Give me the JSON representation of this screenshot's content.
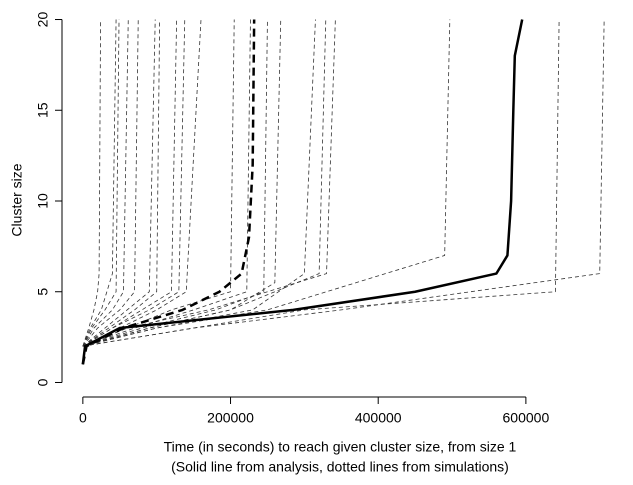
{
  "chart_data": {
    "type": "line",
    "xlabel": "Time (in seconds) to reach given cluster size, from size 1",
    "caption": "(Solid line from analysis, dotted lines from simulations)",
    "ylabel": "Cluster size",
    "xlim": [
      -28240,
      734240
    ],
    "xticks": [
      0,
      200000,
      400000,
      600000
    ],
    "ylim": [
      -0.8,
      20.8
    ],
    "yticks": [
      0,
      5,
      10,
      15,
      20
    ],
    "series": [
      {
        "color": "#333333",
        "width": 0.8,
        "dash": "4,3",
        "x": [
          0,
          8000,
          15000,
          20000,
          22000,
          24000
        ],
        "values": [
          2,
          3,
          4,
          5,
          6,
          20
        ]
      },
      {
        "color": "#333333",
        "width": 0.8,
        "dash": "4,3",
        "x": [
          0,
          10000,
          25000,
          40000,
          45000
        ],
        "values": [
          2,
          3,
          4,
          6,
          20
        ]
      },
      {
        "color": "#333333",
        "width": 0.8,
        "dash": "4,3",
        "x": [
          0,
          12000,
          30000,
          45000,
          49000
        ],
        "values": [
          2,
          3,
          4,
          5,
          20
        ]
      },
      {
        "color": "#333333",
        "width": 0.8,
        "dash": "4,3",
        "x": [
          0,
          15000,
          40000,
          55000,
          61500
        ],
        "values": [
          2,
          3,
          4,
          5,
          20
        ]
      },
      {
        "color": "#333333",
        "width": 0.8,
        "dash": "4,3",
        "x": [
          0,
          20000,
          50000,
          70000,
          75000
        ],
        "values": [
          2,
          3,
          4,
          5,
          20
        ]
      },
      {
        "color": "#333333",
        "width": 0.8,
        "dash": "4,3",
        "x": [
          0,
          30000,
          60000,
          90000,
          98000
        ],
        "values": [
          2,
          3,
          4,
          5,
          20
        ]
      },
      {
        "color": "#333333",
        "width": 0.8,
        "dash": "4,3",
        "x": [
          0,
          35000,
          70000,
          100000,
          104000
        ],
        "values": [
          2,
          3,
          4,
          5,
          20
        ]
      },
      {
        "color": "#333333",
        "width": 0.8,
        "dash": "4,3",
        "x": [
          0,
          40000,
          80000,
          120000,
          127000
        ],
        "values": [
          2,
          3,
          4,
          5,
          20
        ]
      },
      {
        "color": "#333333",
        "width": 0.8,
        "dash": "4,3",
        "x": [
          0,
          40000,
          90000,
          130000,
          138000
        ],
        "values": [
          2,
          3,
          4,
          5,
          20
        ]
      },
      {
        "color": "#333333",
        "width": 0.8,
        "dash": "4,3",
        "x": [
          0,
          50000,
          100000,
          140000,
          160000
        ],
        "values": [
          2,
          3,
          4,
          5,
          20
        ]
      },
      {
        "color": "#333333",
        "width": 0.8,
        "dash": "4,3",
        "x": [
          0,
          60000,
          120000,
          200000,
          205000
        ],
        "values": [
          2,
          3,
          4,
          5,
          20
        ]
      },
      {
        "color": "#333333",
        "width": 0.8,
        "dash": "4,3",
        "x": [
          0,
          70000,
          150000,
          222000,
          227000
        ],
        "values": [
          2,
          3,
          4,
          5,
          20
        ]
      },
      {
        "color": "#333333",
        "width": 0.8,
        "dash": "4,3",
        "x": [
          0,
          80000,
          180000,
          245000,
          250000
        ],
        "values": [
          2,
          3,
          4,
          5,
          20
        ]
      },
      {
        "color": "#333333",
        "width": 0.8,
        "dash": "4,3",
        "x": [
          0,
          90000,
          200000,
          260000,
          268000
        ],
        "values": [
          2,
          3,
          4,
          5.5,
          20
        ]
      },
      {
        "color": "#333333",
        "width": 0.8,
        "dash": "4,3",
        "x": [
          0,
          100000,
          230000,
          300000,
          315000
        ],
        "values": [
          2,
          3,
          4,
          6,
          20
        ]
      },
      {
        "color": "#333333",
        "width": 0.8,
        "dash": "4,3",
        "x": [
          0,
          90000,
          200000,
          320000,
          329000
        ],
        "values": [
          2,
          3,
          4,
          6,
          20
        ]
      },
      {
        "color": "#333333",
        "width": 0.8,
        "dash": "4,3",
        "x": [
          0,
          60000,
          170000,
          330000,
          342000
        ],
        "values": [
          2,
          3,
          4,
          6,
          20
        ]
      },
      {
        "color": "#333333",
        "width": 0.8,
        "dash": "4,3",
        "x": [
          0,
          100000,
          250000,
          490000,
          497000
        ],
        "values": [
          2,
          3,
          4,
          7,
          20
        ]
      },
      {
        "color": "#333333",
        "width": 0.8,
        "dash": "4,3",
        "x": [
          0,
          150000,
          300000,
          640000,
          645000
        ],
        "values": [
          2,
          3,
          4,
          5,
          20
        ]
      },
      {
        "color": "#333333",
        "width": 0.8,
        "dash": "4,3",
        "x": [
          0,
          150000,
          350000,
          700000,
          706000
        ],
        "values": [
          2,
          3,
          4,
          6,
          20
        ]
      },
      {
        "color": "#000000",
        "width": 2.5,
        "dash": "8,5",
        "x": [
          0,
          5000,
          55000,
          135000,
          185000,
          215000,
          225000,
          230000,
          232000
        ],
        "values": [
          1,
          2,
          3,
          4,
          5,
          6,
          8,
          12,
          20
        ]
      },
      {
        "color": "#000000",
        "width": 2.5,
        "dash": "none",
        "x": [
          0,
          3000,
          50000,
          285000,
          450000,
          560000,
          575000,
          580000,
          583000,
          585000,
          595000
        ],
        "values": [
          1,
          2,
          3,
          4,
          5,
          6,
          7,
          10,
          15,
          18,
          20
        ]
      }
    ]
  }
}
